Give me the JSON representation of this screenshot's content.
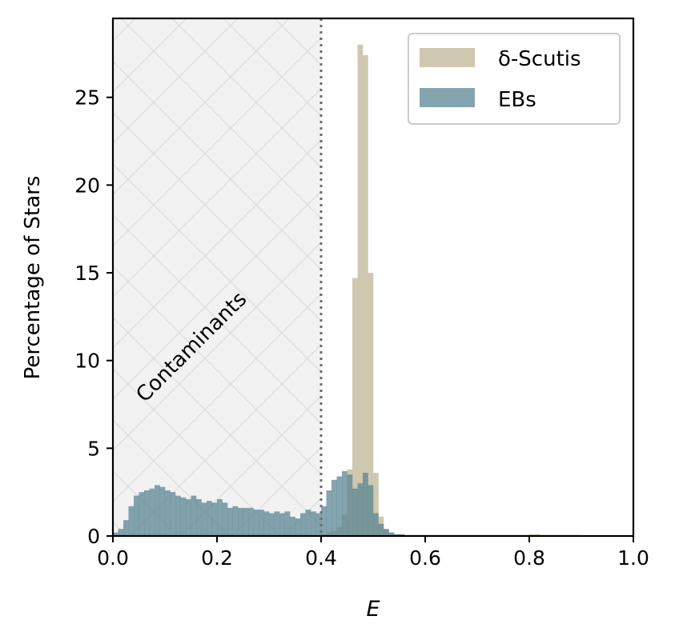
{
  "chart_data": {
    "type": "bar",
    "title": "",
    "xlabel": "E",
    "ylabel": "Percentage of Stars",
    "xlim": [
      0.0,
      1.0
    ],
    "ylim": [
      0,
      29.5
    ],
    "x_ticks": [
      "0.0",
      "0.2",
      "0.4",
      "0.6",
      "0.8",
      "1.0"
    ],
    "y_ticks": [
      "0",
      "5",
      "10",
      "15",
      "20",
      "25"
    ],
    "grid": false,
    "legend_position": "top-right",
    "bin_width": 0.01,
    "threshold": 0.4,
    "region_label": "Contaminants",
    "series": [
      {
        "name": "δ-Scutis",
        "color": "#cfc8b0",
        "x": [
          0.4,
          0.41,
          0.42,
          0.43,
          0.44,
          0.45,
          0.46,
          0.47,
          0.48,
          0.49,
          0.5,
          0.51,
          0.52,
          0.53,
          0.54,
          0.55,
          0.56,
          0.57,
          0.58,
          0.59,
          0.6,
          0.61,
          0.62,
          0.63,
          0.64,
          0.65,
          0.66,
          0.67,
          0.68,
          0.69,
          0.7,
          0.71,
          0.72,
          0.73,
          0.74,
          0.75,
          0.76,
          0.77,
          0.78,
          0.79,
          0.8,
          0.81,
          0.82,
          0.83,
          0.84,
          0.85,
          0.86,
          0.87,
          0.88,
          0.89
        ],
        "values": [
          0.1,
          0.2,
          0.3,
          0.5,
          1.2,
          3.8,
          14.7,
          28.0,
          27.4,
          15.0,
          3.6,
          1.1,
          0.4,
          0.2,
          0.1,
          0.1,
          0.05,
          0.05,
          0.05,
          0.05,
          0.05,
          0.05,
          0.05,
          0.05,
          0.05,
          0.05,
          0.05,
          0.05,
          0.05,
          0.05,
          0.05,
          0.05,
          0.05,
          0.05,
          0.05,
          0.05,
          0.05,
          0.05,
          0.05,
          0.05,
          0.1,
          0.1,
          0.05,
          0.05,
          0.05,
          0.05,
          0.05,
          0.05,
          0.05,
          0.05
        ]
      },
      {
        "name": "EBs",
        "color": "#5b8593",
        "x": [
          0.0,
          0.01,
          0.02,
          0.03,
          0.04,
          0.05,
          0.06,
          0.07,
          0.08,
          0.09,
          0.1,
          0.11,
          0.12,
          0.13,
          0.14,
          0.15,
          0.16,
          0.17,
          0.18,
          0.19,
          0.2,
          0.21,
          0.22,
          0.23,
          0.24,
          0.25,
          0.26,
          0.27,
          0.28,
          0.29,
          0.3,
          0.31,
          0.32,
          0.33,
          0.34,
          0.35,
          0.36,
          0.37,
          0.38,
          0.39,
          0.4,
          0.41,
          0.42,
          0.43,
          0.44,
          0.45,
          0.46,
          0.47,
          0.48,
          0.49,
          0.5,
          0.51,
          0.52,
          0.53,
          0.54,
          0.55,
          0.56,
          0.57,
          0.58,
          0.59,
          0.6,
          0.61,
          0.62,
          0.63,
          0.64,
          0.65,
          0.66,
          0.67,
          0.68,
          0.69,
          0.7,
          0.71,
          0.72,
          0.73,
          0.74,
          0.75,
          0.76,
          0.77,
          0.78,
          0.79,
          0.8,
          0.81,
          0.82,
          0.83,
          0.84,
          0.85,
          0.86,
          0.87,
          0.88,
          0.89
        ],
        "values": [
          0.2,
          0.4,
          0.9,
          1.7,
          2.3,
          2.5,
          2.6,
          2.7,
          2.9,
          2.8,
          2.6,
          2.5,
          2.3,
          2.2,
          2.1,
          2.3,
          2.1,
          1.9,
          2.0,
          1.9,
          2.1,
          1.9,
          1.6,
          1.7,
          1.6,
          1.6,
          1.6,
          1.5,
          1.5,
          1.4,
          1.3,
          1.4,
          1.3,
          1.4,
          1.1,
          1.0,
          1.3,
          1.5,
          1.4,
          1.3,
          1.7,
          2.6,
          3.2,
          3.4,
          3.7,
          3.5,
          2.7,
          3.0,
          3.6,
          2.9,
          1.3,
          0.7,
          0.4,
          0.2,
          0.1,
          0.1,
          0.05,
          0.05,
          0.05,
          0.05,
          0.05,
          0.05,
          0.05,
          0.05,
          0.05,
          0.05,
          0.05,
          0.05,
          0.05,
          0.05,
          0.05,
          0.05,
          0.05,
          0.05,
          0.05,
          0.05,
          0.05,
          0.05,
          0.05,
          0.05,
          0.05,
          0.05,
          0.05,
          0.05,
          0.05,
          0.05,
          0.05,
          0.05,
          0.05,
          0.05
        ]
      }
    ]
  }
}
